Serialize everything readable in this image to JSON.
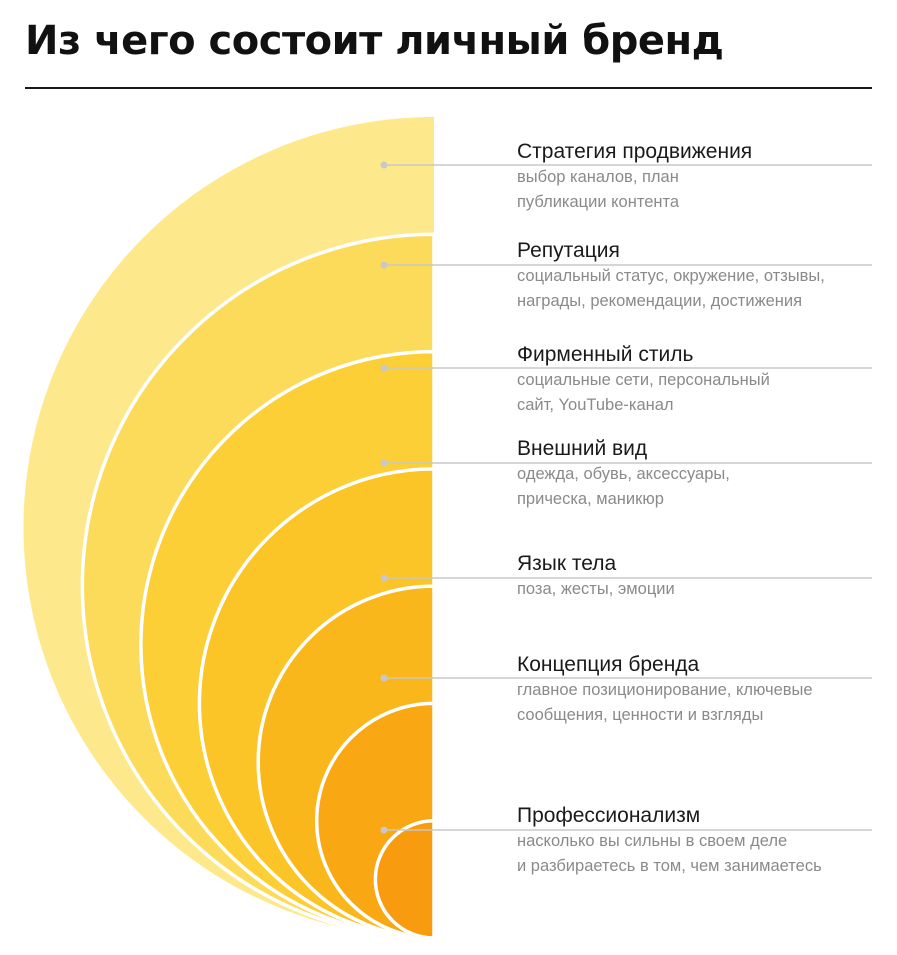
{
  "title": "Из чего состоит личный бренд",
  "colors": {
    "layers": [
      "#FDE98C",
      "#FDDB5A",
      "#FCCF37",
      "#FBC427",
      "#FAB71C",
      "#F9A813",
      "#F89B0E"
    ],
    "leader_line": "#c8c8c8",
    "dot": "#c8c8c8"
  },
  "layers": [
    {
      "name": "Стратегия продвижения",
      "desc": "выбор каналов, план\nпубликации контента"
    },
    {
      "name": "Репутация",
      "desc": "социальный статус, окружение, отзывы,\nнаграды, рекомендации, достижения"
    },
    {
      "name": "Фирменный стиль",
      "desc": "социальные сети, персональный\nсайт, YouTube-канал"
    },
    {
      "name": "Внешний вид",
      "desc": "одежда, обувь, аксессуары,\nприческа, маникюр"
    },
    {
      "name": "Язык тела",
      "desc": "поза, жесты, эмоции"
    },
    {
      "name": "Концепция бренда",
      "desc": "главное позиционирование, ключевые\nсообщения, ценности и взгляды"
    },
    {
      "name": "Профессионализм",
      "desc": "насколько вы сильны в своем деле\nи разбираетесь в том, чем занимаетесь"
    }
  ]
}
